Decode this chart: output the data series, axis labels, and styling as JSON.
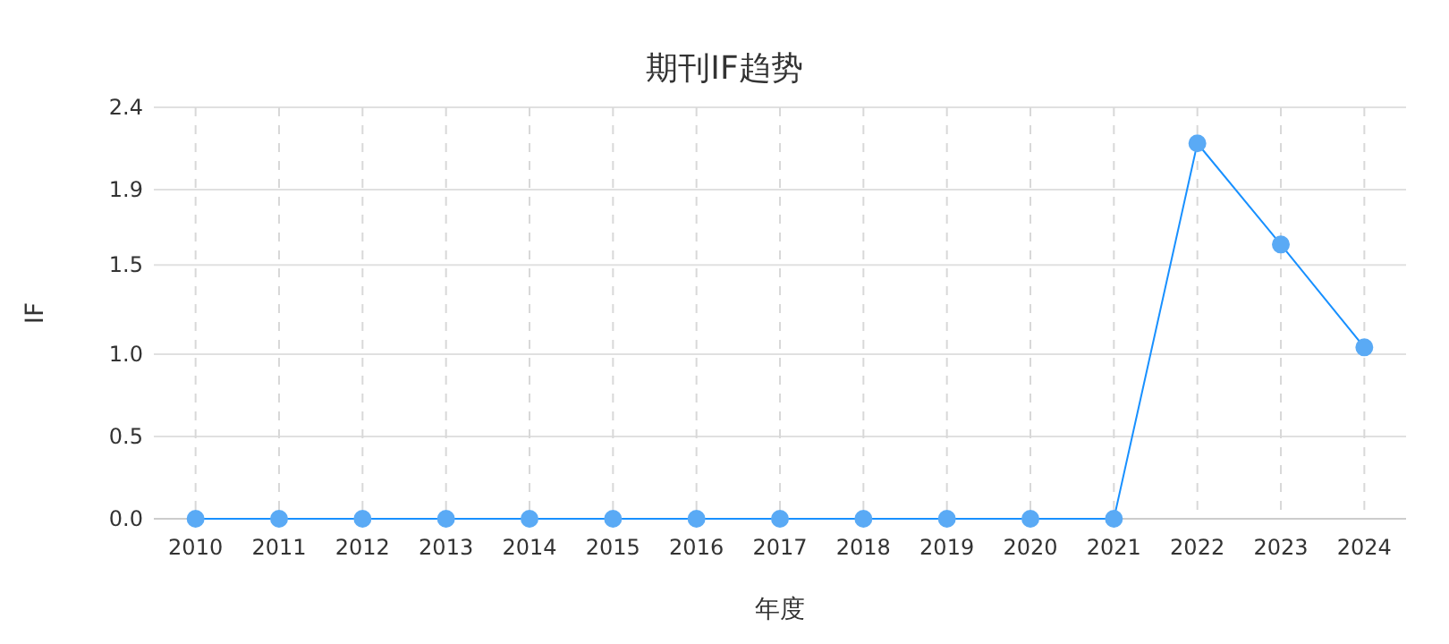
{
  "chart_data": {
    "type": "line",
    "title": "期刊IF趋势",
    "xlabel": "年度",
    "ylabel": "IF",
    "categories": [
      "2010",
      "2011",
      "2012",
      "2013",
      "2014",
      "2015",
      "2016",
      "2017",
      "2018",
      "2019",
      "2020",
      "2021",
      "2022",
      "2023",
      "2024"
    ],
    "series": [
      {
        "color": "#1890ff",
        "values": [
          0,
          0,
          0,
          0,
          0,
          0,
          0,
          0,
          0,
          0,
          0,
          0,
          2.19,
          1.6,
          1.0
        ]
      }
    ],
    "ylim": [
      0,
      2.4
    ],
    "yticks": [
      {
        "value": 0,
        "label": "0.0"
      },
      {
        "value": 0.48,
        "label": "0.5"
      },
      {
        "value": 0.96,
        "label": "1.0"
      },
      {
        "value": 1.48,
        "label": "1.5"
      },
      {
        "value": 1.92,
        "label": "1.9"
      },
      {
        "value": 2.4,
        "label": "2.4"
      }
    ],
    "grid": true,
    "marker": "circle",
    "line_style": "solid"
  }
}
